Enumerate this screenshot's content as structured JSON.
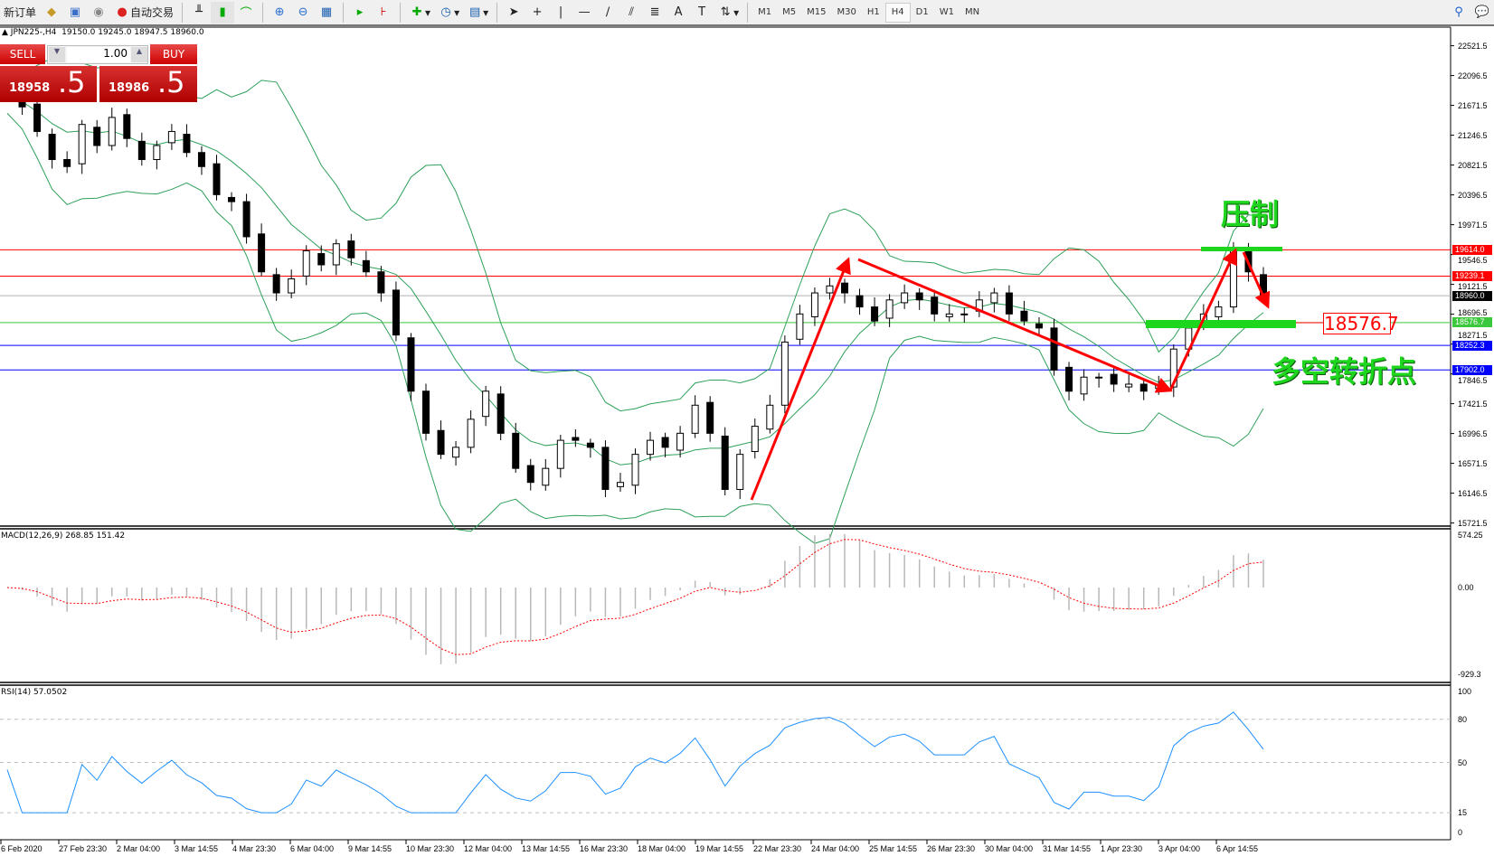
{
  "toolbar": {
    "new_order": "新订单",
    "auto_trading": "自动交易",
    "timeframes": [
      "M1",
      "M5",
      "M15",
      "M30",
      "H1",
      "H4",
      "D1",
      "W1",
      "MN"
    ],
    "selected_timeframe": "H4"
  },
  "header": {
    "symbol": "JPN225-,H4",
    "ohlc": "19150.0 19245.0 18947.5 18960.0"
  },
  "trade_panel": {
    "sell_label": "SELL",
    "buy_label": "BUY",
    "lot": "1.00",
    "sell_price_main": "18958",
    "sell_price_frac": ".5",
    "buy_price_main": "18986",
    "buy_price_frac": ".5"
  },
  "annotations": {
    "resistance": "压制",
    "turning_point": "多空转折点",
    "level_box": "18576.7"
  },
  "colors": {
    "bull_bear_arrow": "#ff0000",
    "annotation_green": "#1fd61f",
    "bands": "#2ea05a",
    "rsi": "#1e90ff",
    "macd_signal": "#ff0000"
  },
  "chart_data": [
    {
      "type": "candlestick",
      "title": "JPN225-,H4",
      "y_ticks": [
        "22521.5",
        "22096.5",
        "21671.5",
        "21246.5",
        "20821.5",
        "20396.5",
        "19971.5",
        "19546.5",
        "19121.5",
        "18696.5",
        "18271.5",
        "17846.5",
        "17421.5",
        "16996.5",
        "16571.5",
        "16146.5",
        "15721.5"
      ],
      "ylim": [
        15721.5,
        22521.5
      ],
      "x_ticks": [
        "6 Feb 2020",
        "27 Feb 23:30",
        "2 Mar 04:00",
        "3 Mar 14:55",
        "4 Mar 23:30",
        "6 Mar 04:00",
        "9 Mar 14:55",
        "10 Mar 23:30",
        "12 Mar 04:00",
        "13 Mar 14:55",
        "16 Mar 23:30",
        "18 Mar 04:00",
        "19 Mar 14:55",
        "22 Mar 23:30",
        "24 Mar 04:00",
        "25 Mar 14:55",
        "26 Mar 23:30",
        "30 Mar 04:00",
        "31 Mar 14:55",
        "1 Apr 23:30",
        "3 Apr 04:00",
        "6 Apr 14:55"
      ],
      "close": [
        21800,
        21650,
        21300,
        20900,
        20800,
        21400,
        21100,
        21500,
        21200,
        20900,
        21100,
        21300,
        21000,
        20800,
        20400,
        20300,
        19800,
        19300,
        19000,
        19200,
        19600,
        19400,
        19700,
        19500,
        19300,
        19000,
        18400,
        17600,
        17000,
        16700,
        16800,
        17200,
        17600,
        17000,
        16500,
        16300,
        16500,
        16900,
        16900,
        16800,
        16200,
        16300,
        16700,
        16900,
        16800,
        17000,
        17400,
        17000,
        16200,
        16700,
        17100,
        17400,
        18300,
        18700,
        19000,
        19100,
        19000,
        18800,
        18600,
        18900,
        19000,
        18900,
        18700,
        18700,
        18700,
        18900,
        19000,
        18700,
        18600,
        18500,
        17900,
        17600,
        17800,
        17800,
        17700,
        17700,
        17600,
        17700,
        18200,
        18500,
        18700,
        18800,
        19600,
        19300,
        18960
      ],
      "indicators": [
        "Bollinger Bands"
      ],
      "horizontal_levels": [
        {
          "value": "19614.0",
          "color": "#ff0000"
        },
        {
          "value": "19239.1",
          "color": "#ff0000"
        },
        {
          "value": "18960.0",
          "color": "#000000"
        },
        {
          "value": "18576.7",
          "color": "#3cc83c"
        },
        {
          "value": "18252.3",
          "color": "#0000ff"
        },
        {
          "value": "17902.0",
          "color": "#0000ff"
        }
      ]
    },
    {
      "type": "bar",
      "title": "MACD(12,26,9) 268.85 151.42",
      "y_ticks": [
        "574.25",
        "0.00",
        "-929.3"
      ],
      "ylim": [
        -929.3,
        574.25
      ]
    },
    {
      "type": "line",
      "title": "RSI(14) 57.0502",
      "y_ticks": [
        "100",
        "80",
        "50",
        "15",
        "0"
      ],
      "ylim": [
        0,
        100
      ],
      "levels": [
        80,
        50,
        15
      ]
    }
  ]
}
